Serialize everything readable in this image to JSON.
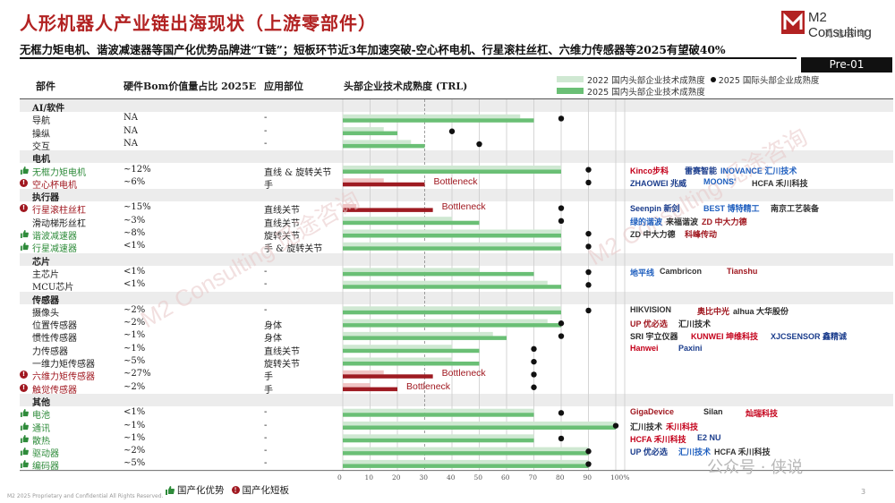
{
  "title": "人形机器人产业链出海现状（上游零部件）",
  "subtitle": "无框力矩电机、谐波减速器等国产化优势品牌进“T链”；短板环节近3年加速突破-空心杯电机、行星滚柱丝杠、六维力传感器等2025有望破40%",
  "page_tag": "Pre-01",
  "brand": {
    "name": "M2 Consulting",
    "sub": "觅途咨询"
  },
  "watermark_text": "M2 Consulting 觅途咨询",
  "headers": {
    "part": "部件",
    "bom": "硬件Bom价值量占比 2025E",
    "pos": "应用部位",
    "trl": "头部企业技术成熟度 (TRL)"
  },
  "legend": {
    "y2022": "2022 国内头部企业技术成熟度",
    "y2025": "2025 国内头部企业技术成熟度",
    "intl": "2025 国际头部企业成熟度"
  },
  "colors": {
    "y2022": "#cfe8d2",
    "y2025": "#6abf75",
    "bottleneck": "#9e1b22",
    "bottleneck_light": "#f0c4c4",
    "dot": "#111111"
  },
  "bottleneck_label": "Bottleneck",
  "chart_data": {
    "type": "bar",
    "xlim": [
      0,
      100
    ],
    "xticks": [
      "0",
      "10",
      "20",
      "30",
      "40",
      "50",
      "60",
      "70",
      "80",
      "90",
      "100%"
    ],
    "rows": [
      {
        "type": "cat",
        "name": "AI/软件"
      },
      {
        "name": "导航",
        "bom": "NA",
        "pos": "-",
        "y2022": 65,
        "y2025": 70,
        "intl": 80
      },
      {
        "name": "操纵",
        "bom": "NA",
        "pos": "-",
        "y2022": 15,
        "y2025": 20,
        "intl": 40
      },
      {
        "name": "交互",
        "bom": "NA",
        "pos": "-",
        "y2022": 25,
        "y2025": 30,
        "intl": 50
      },
      {
        "type": "cat",
        "name": "电机"
      },
      {
        "name": "无框力矩电机",
        "flag": "adv",
        "bom": "~12%",
        "pos": "直线 & 旋转关节",
        "y2022": 80,
        "y2025": 80,
        "intl": 90
      },
      {
        "name": "空心杯电机",
        "flag": "bot",
        "bom": "~6%",
        "pos": "手",
        "y2022": 15,
        "y2025": 30,
        "intl": 90,
        "bottleneck": true
      },
      {
        "type": "cat",
        "name": "执行器"
      },
      {
        "name": "行星滚柱丝杠",
        "flag": "bot",
        "bom": "~15%",
        "pos": "直线关节",
        "y2022": 5,
        "y2025": 33,
        "intl": 80,
        "bottleneck": true
      },
      {
        "name": "滑动梯形丝杠",
        "bom": "~3%",
        "pos": "直线关节",
        "y2022": 40,
        "y2025": 50,
        "intl": 80
      },
      {
        "name": "谐波减速器",
        "flag": "adv",
        "bom": "~8%",
        "pos": "旋转关节",
        "y2022": 80,
        "y2025": 80,
        "intl": 90
      },
      {
        "name": "行星减速器",
        "flag": "adv",
        "bom": "<1%",
        "pos": "手 & 旋转关节",
        "y2022": 80,
        "y2025": 80,
        "intl": 90
      },
      {
        "type": "cat",
        "name": "芯片"
      },
      {
        "name": "主芯片",
        "bom": "<1%",
        "pos": "-",
        "y2022": 50,
        "y2025": 70,
        "intl": 90
      },
      {
        "name": "MCU芯片",
        "bom": "<1%",
        "pos": "-",
        "y2022": 75,
        "y2025": 80,
        "intl": 90
      },
      {
        "type": "cat",
        "name": "传感器"
      },
      {
        "name": "摄像头",
        "bom": "~2%",
        "pos": "-",
        "y2022": 80,
        "y2025": 80,
        "intl": 90
      },
      {
        "name": "位置传感器",
        "bom": "~2%",
        "pos": "身体",
        "y2022": 75,
        "y2025": 80,
        "intl": 80
      },
      {
        "name": "惯性传感器",
        "bom": "~1%",
        "pos": "身体",
        "y2022": 55,
        "y2025": 60,
        "intl": 80
      },
      {
        "name": "力传感器",
        "bom": "~1%",
        "pos": "直线关节",
        "y2022": 40,
        "y2025": 50,
        "intl": 70
      },
      {
        "name": "一维力矩传感器",
        "bom": "~5%",
        "pos": "旋转关节",
        "y2022": 40,
        "y2025": 50,
        "intl": 70
      },
      {
        "name": "六维力矩传感器",
        "flag": "bot",
        "bom": "~27%",
        "pos": "手",
        "y2022": 15,
        "y2025": 33,
        "intl": 70,
        "bottleneck": true
      },
      {
        "name": "触觉传感器",
        "flag": "bot",
        "bom": "~2%",
        "pos": "手",
        "y2022": 10,
        "y2025": 20,
        "intl": 70,
        "bottleneck": true
      },
      {
        "type": "cat",
        "name": "其他"
      },
      {
        "name": "电池",
        "flag": "adv",
        "bom": "<1%",
        "pos": "-",
        "y2022": 70,
        "y2025": 70,
        "intl": 80
      },
      {
        "name": "通讯",
        "flag": "adv",
        "bom": "~1%",
        "pos": "-",
        "y2022": 100,
        "y2025": 100,
        "intl": 100
      },
      {
        "name": "散热",
        "flag": "adv",
        "bom": "~1%",
        "pos": "-",
        "y2022": 70,
        "y2025": 70,
        "intl": 80
      },
      {
        "name": "驱动器",
        "flag": "adv",
        "bom": "~2%",
        "pos": "-",
        "y2022": 90,
        "y2025": 90,
        "intl": 90
      },
      {
        "name": "编码器",
        "flag": "adv",
        "bom": "~5%",
        "pos": "-",
        "y2022": 90,
        "y2025": 90,
        "intl": 90
      }
    ]
  },
  "company_logos": [
    {
      "group": "motors",
      "line1": [
        "Kinco步科",
        "雷赛智能",
        "INOVANCE 汇川技术"
      ],
      "line2": [
        "ZHAOWEI 兆威",
        "MOONS'",
        "HCFA 禾川科技"
      ]
    },
    {
      "group": "actuators",
      "line1": [
        "Seenpin 新剑",
        "BEST 博特精工",
        "南京工艺装备"
      ],
      "line2": [
        "绿的谐波",
        "来福谐波",
        "ZD 中大力德"
      ],
      "line3": [
        "ZD 中大力德",
        "科峰传动"
      ]
    },
    {
      "group": "chips",
      "line1": [
        "地平线",
        "Cambricon",
        "Tianshu"
      ]
    },
    {
      "group": "sensors",
      "line1": [
        "HIKVISION",
        "奥比中光",
        "alhua 大华股份"
      ],
      "line2": [
        "UP 优必选",
        "汇川技术"
      ],
      "line3": [
        "SRI 宇立仪器",
        "KUNWEI 坤维科技",
        "XJCSENSOR 鑫精诚"
      ],
      "line4": [
        "Hanwei",
        "Paxini"
      ]
    },
    {
      "group": "others",
      "line1": [
        "GigaDevice",
        "Silan",
        "灿瑞科技"
      ],
      "line2": [
        "汇川技术",
        "禾川科技"
      ],
      "line3": [
        "HCFA 禾川科技",
        "E2 NU"
      ],
      "line4": [
        "UP 优必选",
        "汇川技术",
        "HCFA 禾川科技"
      ]
    }
  ],
  "bottom_legend": {
    "adv": "国产化优势",
    "bot": "国产化短板"
  },
  "footer": "M2 2025 Proprietary and Confidential All Rights Reserved.",
  "page_number": "3",
  "wechat_watermark": "公众号 · 侠说"
}
